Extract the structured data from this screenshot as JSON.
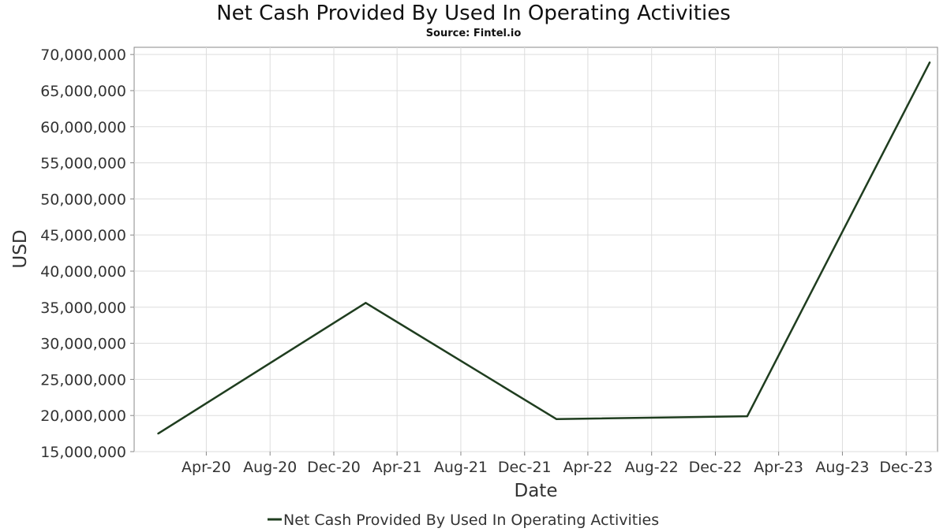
{
  "chart_data": {
    "type": "line",
    "title": "Net Cash Provided By Used In Operating Activities",
    "subtitle": "Source: Fintel.io",
    "xlabel": "Date",
    "ylabel": "USD",
    "x_tick_labels": [
      "Apr-20",
      "Aug-20",
      "Dec-20",
      "Apr-21",
      "Aug-21",
      "Dec-21",
      "Apr-22",
      "Aug-22",
      "Dec-22",
      "Apr-23",
      "Aug-23",
      "Dec-23"
    ],
    "x_tick_dates": [
      "2020-04-01",
      "2020-08-01",
      "2020-12-01",
      "2021-04-01",
      "2021-08-01",
      "2021-12-01",
      "2022-04-01",
      "2022-08-01",
      "2022-12-01",
      "2023-04-01",
      "2023-08-01",
      "2023-12-01"
    ],
    "y_ticks": [
      15000000,
      20000000,
      25000000,
      30000000,
      35000000,
      40000000,
      45000000,
      50000000,
      55000000,
      60000000,
      65000000,
      70000000
    ],
    "y_tick_labels": [
      "15,000,000",
      "20,000,000",
      "25,000,000",
      "30,000,000",
      "35,000,000",
      "40,000,000",
      "45,000,000",
      "50,000,000",
      "55,000,000",
      "60,000,000",
      "65,000,000",
      "70,000,000"
    ],
    "ylim": [
      15000000,
      71000000
    ],
    "xlim": [
      "2019-11-15",
      "2024-01-30"
    ],
    "grid": true,
    "legend_position": "bottom-center",
    "series": [
      {
        "name": "Net Cash Provided By Used In Operating Activities",
        "color": "#1f3d1f",
        "points": [
          {
            "x": "2019-12-31",
            "y": 17500000
          },
          {
            "x": "2021-01-31",
            "y": 35600000
          },
          {
            "x": "2022-01-31",
            "y": 19500000
          },
          {
            "x": "2023-01-31",
            "y": 19900000
          },
          {
            "x": "2024-01-15",
            "y": 68900000
          }
        ]
      }
    ]
  }
}
